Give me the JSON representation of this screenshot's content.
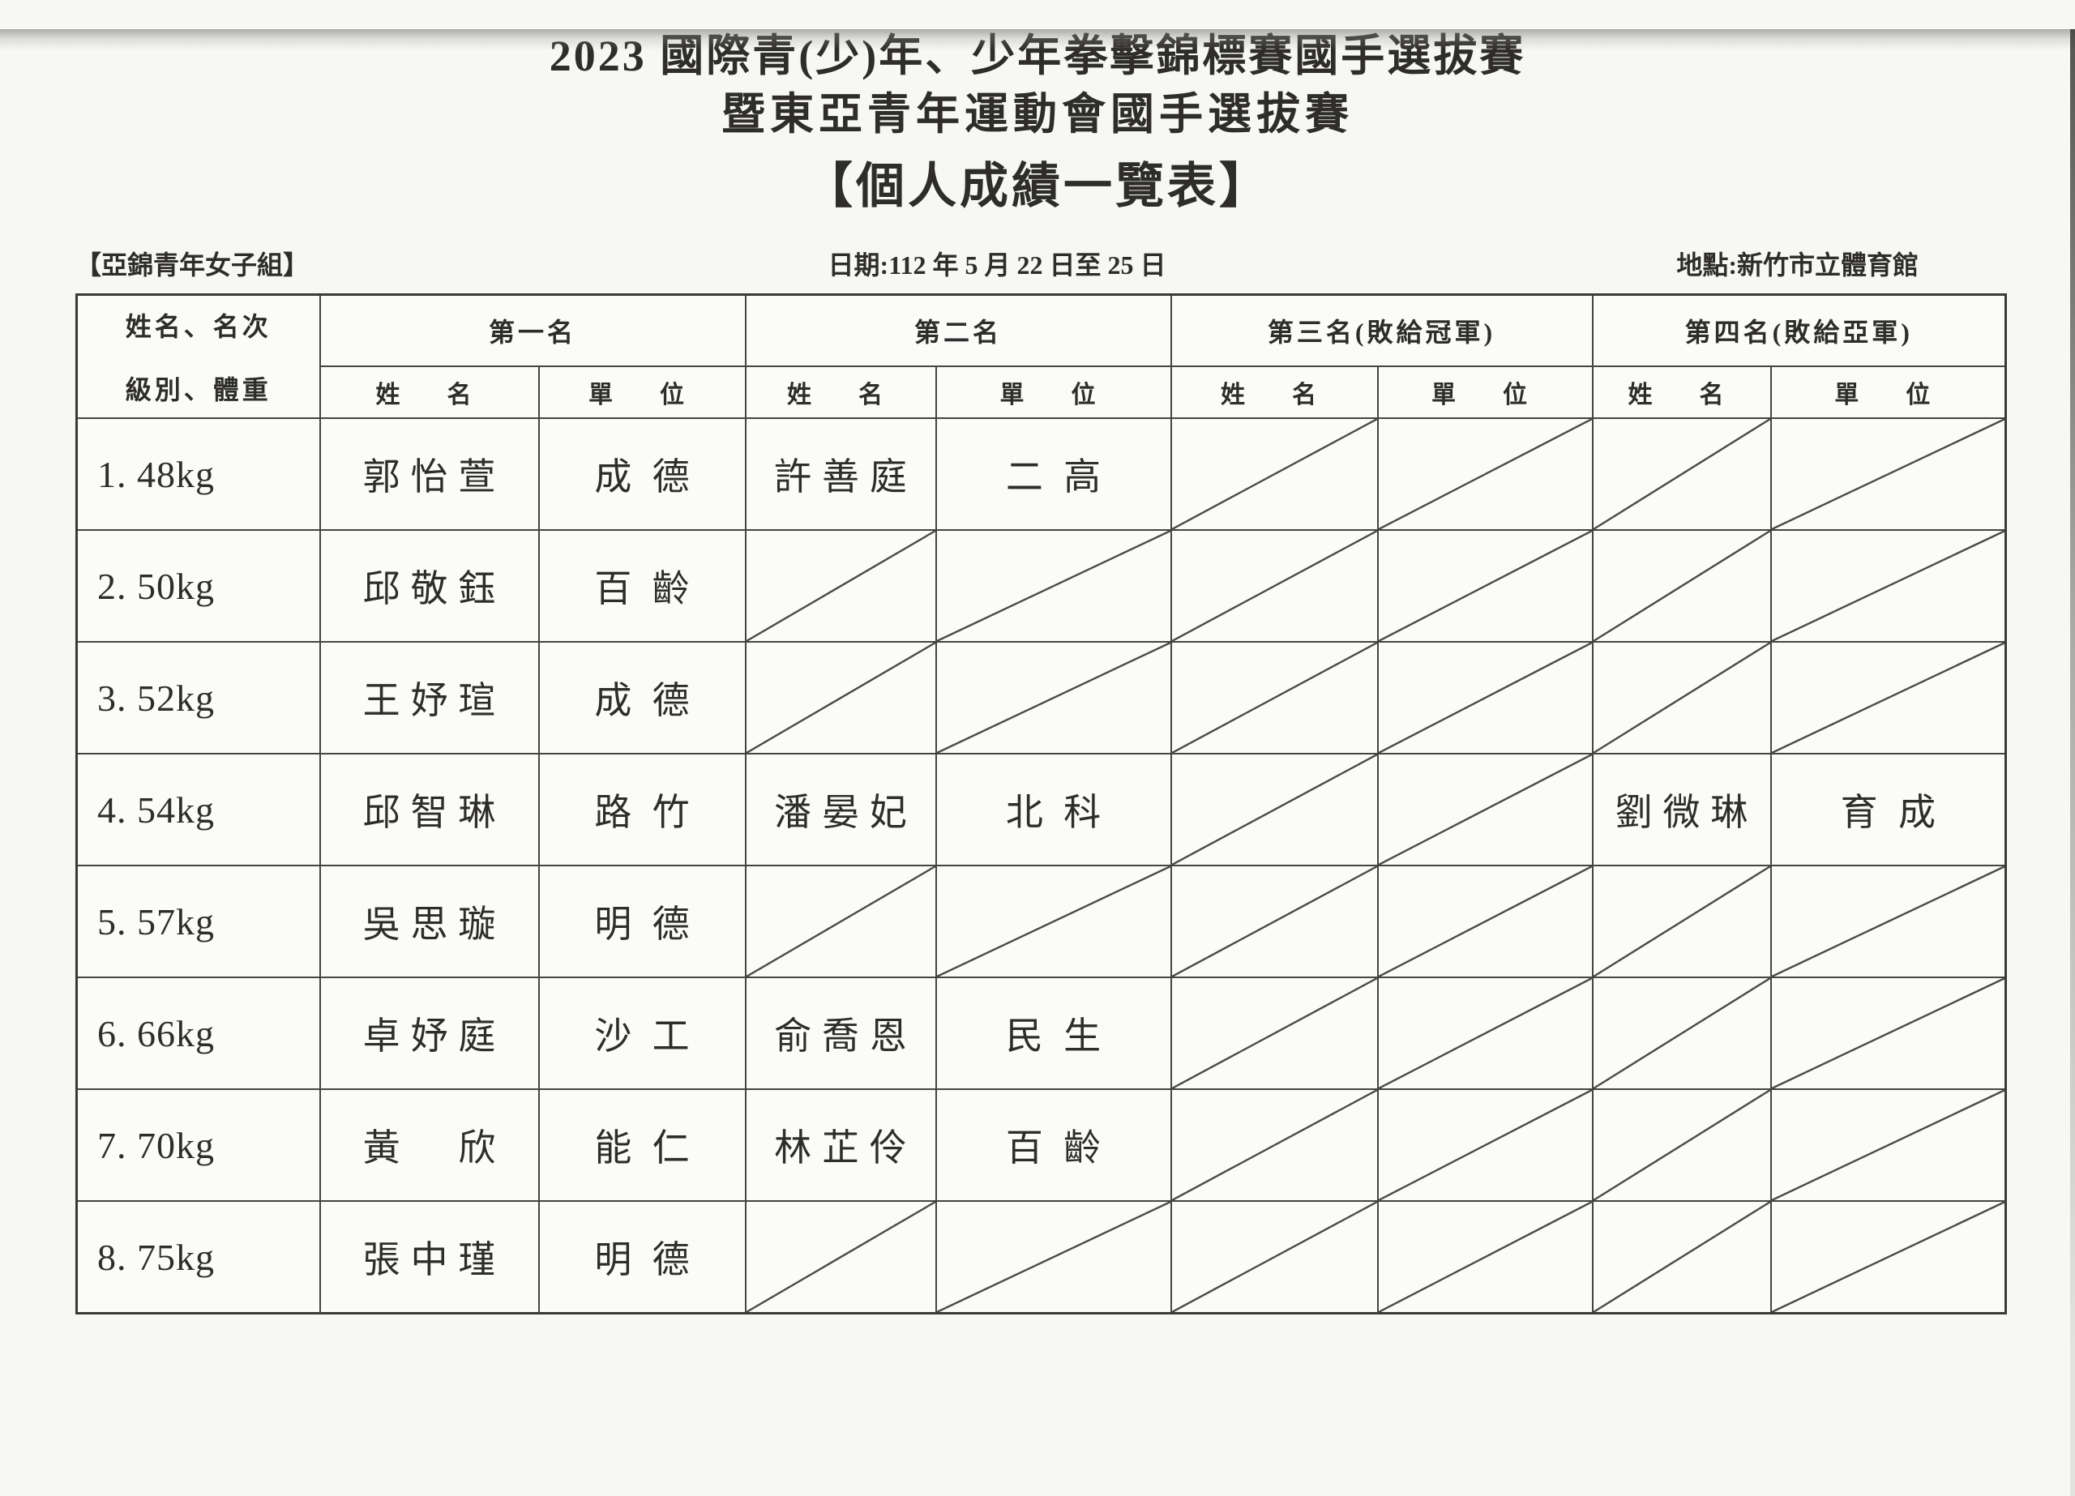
{
  "title": {
    "line1": "2023 國際青(少)年、少年拳擊錦標賽國手選拔賽",
    "line2": "暨東亞青年運動會國手選拔賽",
    "line3": "【個人成績一覽表】"
  },
  "info": {
    "group": "【亞錦青年女子組】",
    "date": "日期:112 年 5 月 22 日至 25 日",
    "location": "地點:新竹市立體育館"
  },
  "table": {
    "corner_line1": "姓名、名次",
    "corner_line2": "級別、體重",
    "place_headers": [
      "第一名",
      "第二名",
      "第三名(敗給冠軍)",
      "第四名(敗給亞軍)"
    ],
    "name_header": "姓　名",
    "unit_header": "單　位",
    "rows": [
      {
        "weight_class": "1. 48kg",
        "places": [
          {
            "name": "郭怡萱",
            "unit": "成德"
          },
          {
            "name": "許善庭",
            "unit": "二高"
          },
          null,
          null
        ]
      },
      {
        "weight_class": "2. 50kg",
        "places": [
          {
            "name": "邱敬鈺",
            "unit": "百齡"
          },
          null,
          null,
          null
        ]
      },
      {
        "weight_class": "3. 52kg",
        "places": [
          {
            "name": "王妤瑄",
            "unit": "成德"
          },
          null,
          null,
          null
        ]
      },
      {
        "weight_class": "4. 54kg",
        "places": [
          {
            "name": "邱智琳",
            "unit": "路竹"
          },
          {
            "name": "潘晏妃",
            "unit": "北科"
          },
          null,
          {
            "name": "劉微琳",
            "unit": "育成"
          }
        ]
      },
      {
        "weight_class": "5. 57kg",
        "places": [
          {
            "name": "吳思璇",
            "unit": "明德"
          },
          null,
          null,
          null
        ]
      },
      {
        "weight_class": "6. 66kg",
        "places": [
          {
            "name": "卓妤庭",
            "unit": "沙工"
          },
          {
            "name": "俞喬恩",
            "unit": "民生"
          },
          null,
          null
        ]
      },
      {
        "weight_class": "7. 70kg",
        "places": [
          {
            "name": "黃　欣",
            "unit": "能仁"
          },
          {
            "name": "林芷伶",
            "unit": "百齡"
          },
          null,
          null
        ]
      },
      {
        "weight_class": "8. 75kg",
        "places": [
          {
            "name": "張中瑾",
            "unit": "明德"
          },
          null,
          null,
          null
        ]
      }
    ]
  },
  "colors": {
    "ink": "#2e2d2b",
    "border": "#454442",
    "paper": "#f7f7f5"
  }
}
